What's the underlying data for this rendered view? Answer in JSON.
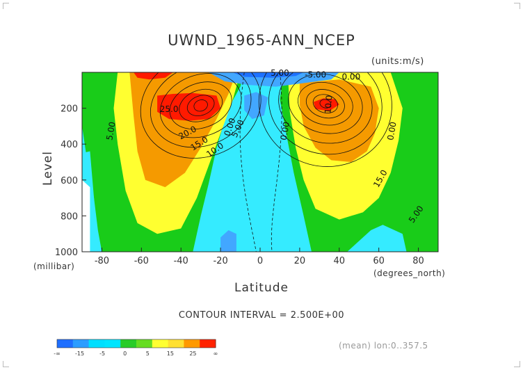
{
  "chart_data": {
    "type": "heatmap",
    "title": "UWND_1965-ANN_NCEP",
    "units_label": "(units:m/s)",
    "xlabel": "Latitude",
    "x_unit_label": "(degrees_north)",
    "ylabel": "Level",
    "y_unit_label": "(millibar)",
    "xlim": [
      -90,
      90
    ],
    "ylim": [
      1000,
      0
    ],
    "x_ticks": [
      -80,
      -60,
      -40,
      -20,
      0,
      20,
      40,
      60,
      80
    ],
    "y_ticks": [
      200,
      400,
      600,
      800,
      1000
    ],
    "contour_interval": "CONTOUR INTERVAL = 2.500E+00",
    "contour_labels": [
      "25.0",
      "20.0",
      "15.0",
      "10.0",
      "5.00",
      "0.00",
      "5.00",
      "0.00",
      "0.00",
      "5.00",
      "-5.00",
      "10.0",
      "15.0",
      "5.00",
      "0.00"
    ],
    "jets": [
      {
        "name": "",
        "lat": -30,
        "level": 200,
        "peak": 25
      },
      {
        "name": "",
        "lat": 32,
        "level": 200,
        "peak": 25
      }
    ],
    "colorbar": {
      "labels": [
        "-∞",
        "-15",
        "-5",
        "0",
        "5",
        "15",
        "25",
        "∞"
      ],
      "colors": [
        "#1f6fff",
        "#2c9dff",
        "#00dfff",
        "#00e5ff",
        "#28cc28",
        "#66dd22",
        "#ffff33",
        "#ffe033",
        "#ff9900",
        "#ff2200"
      ]
    },
    "field_colors": {
      "neg": "#42a7ff",
      "negdeep": "#1e72ff",
      "zero": "#35ebff",
      "green": "#19cc19",
      "yellow": "#ffff30",
      "orange": "#f59a00",
      "red": "#ff1a00"
    },
    "footnote": "(mean) lon:0..357.5"
  }
}
